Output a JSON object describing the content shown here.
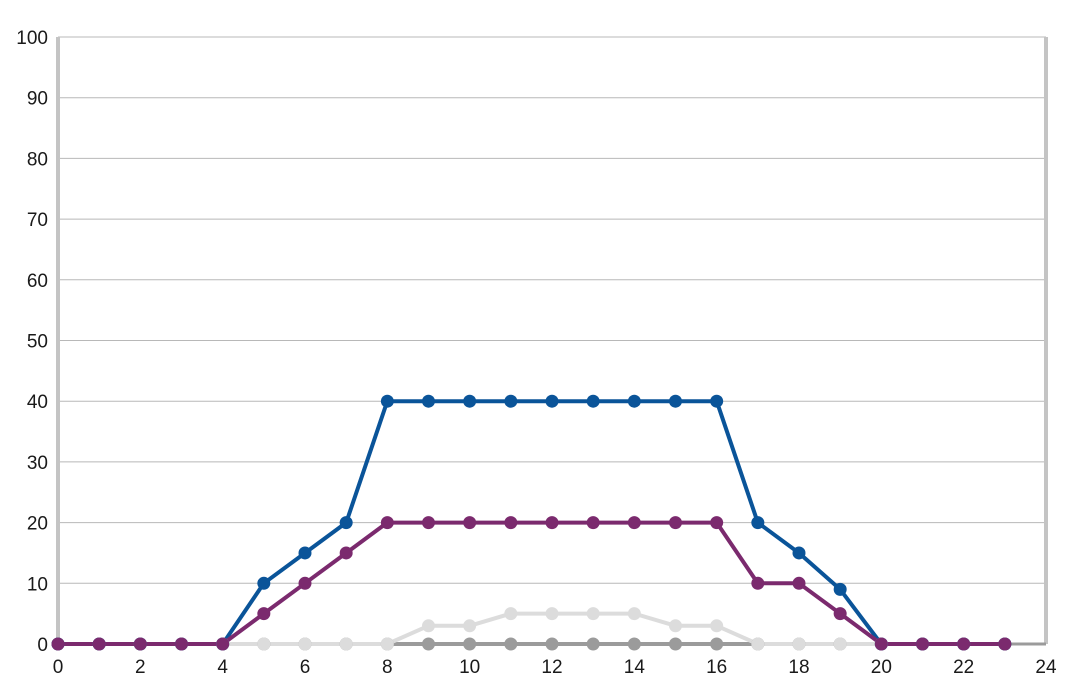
{
  "chart_data": {
    "type": "line",
    "xlim": [
      0,
      24
    ],
    "ylim": [
      0,
      100
    ],
    "x_ticks": [
      "0",
      "2",
      "4",
      "6",
      "8",
      "10",
      "12",
      "14",
      "16",
      "18",
      "20",
      "22",
      "24"
    ],
    "y_ticks": [
      "0",
      "10",
      "20",
      "30",
      "40",
      "50",
      "60",
      "70",
      "80",
      "90",
      "100"
    ],
    "grid": true,
    "legend": "none",
    "series": [
      {
        "color": "#9b9b9b",
        "x": [
          0,
          1,
          2,
          3,
          4,
          5,
          6,
          7,
          8,
          9,
          10,
          11,
          12,
          13,
          14,
          15,
          16,
          17,
          18,
          19,
          20,
          21,
          22,
          23
        ],
        "values": [
          0,
          0,
          0,
          0,
          0,
          0,
          0,
          0,
          0,
          0,
          0,
          0,
          0,
          0,
          0,
          0,
          0,
          0,
          0,
          0,
          0,
          0,
          0,
          0
        ]
      },
      {
        "color": "#dcdcdc",
        "x": [
          4,
          5,
          6,
          7,
          8,
          9,
          10,
          11,
          12,
          13,
          14,
          15,
          16,
          17,
          18,
          19,
          20
        ],
        "values": [
          0,
          0,
          0,
          0,
          0,
          3,
          3,
          5,
          5,
          5,
          5,
          3,
          3,
          0,
          0,
          0,
          0
        ]
      },
      {
        "color": "#0a5499",
        "x": [
          0,
          1,
          2,
          3,
          4,
          5,
          6,
          7,
          8,
          9,
          10,
          11,
          12,
          13,
          14,
          15,
          16,
          17,
          18,
          19,
          20,
          21,
          22,
          23
        ],
        "values": [
          0,
          0,
          0,
          0,
          0,
          10,
          15,
          20,
          40,
          40,
          40,
          40,
          40,
          40,
          40,
          40,
          40,
          20,
          15,
          9,
          0,
          0,
          0,
          0
        ]
      },
      {
        "color": "#7b2a6e",
        "x": [
          0,
          1,
          2,
          3,
          4,
          5,
          6,
          7,
          8,
          9,
          10,
          11,
          12,
          13,
          14,
          15,
          16,
          17,
          18,
          19,
          20,
          21,
          22,
          23
        ],
        "values": [
          0,
          0,
          0,
          0,
          0,
          5,
          10,
          15,
          20,
          20,
          20,
          20,
          20,
          20,
          20,
          20,
          20,
          10,
          10,
          5,
          0,
          0,
          0,
          0
        ]
      }
    ]
  }
}
